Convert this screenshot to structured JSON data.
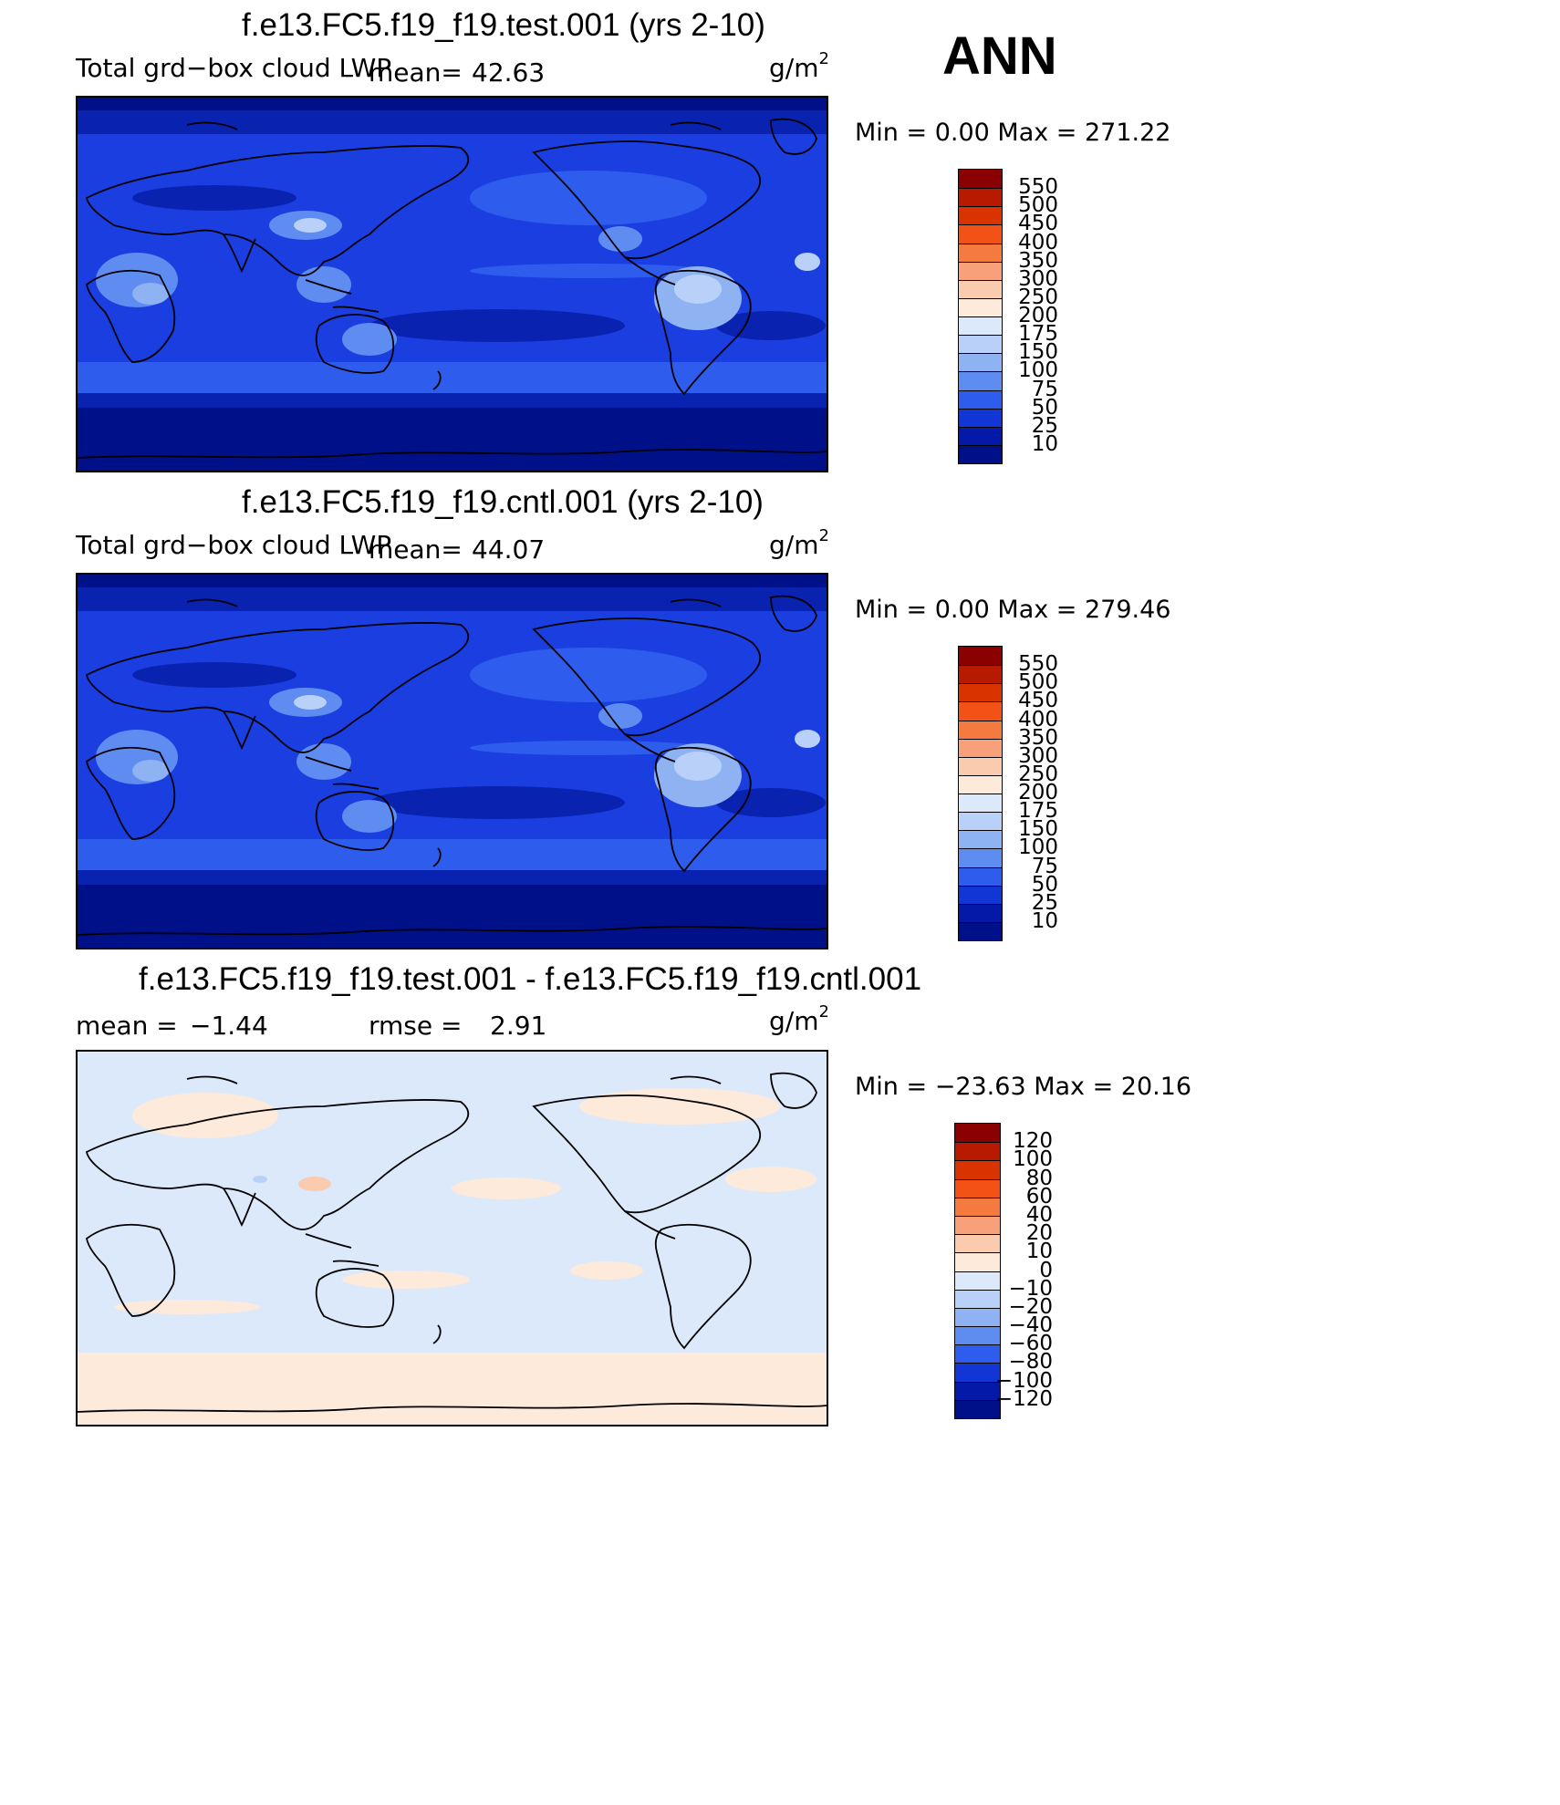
{
  "season": "ANN",
  "panels": [
    {
      "title": "f.e13.FC5.f19_f19.test.001 (yrs 2-10)",
      "variable": "Total grd−box cloud LWP",
      "stat_label": "mean=",
      "stat_value": "42.63",
      "units_base": "g/m",
      "units_exp": "2",
      "minmax": "Min  =     0.00  Max  =  271.22",
      "colorbar_labels": [
        "550",
        "500",
        "450",
        "400",
        "350",
        "300",
        "250",
        "200",
        "175",
        "150",
        "100",
        "75",
        "50",
        "25",
        "10"
      ],
      "colorbar_colors": [
        "#8b0000",
        "#b81a00",
        "#d93300",
        "#f25216",
        "#f57a3f",
        "#f7a07a",
        "#fbcbb0",
        "#fdeadb",
        "#dce9fb",
        "#b9d1f8",
        "#8fb2f3",
        "#5f8cf0",
        "#2e5ded",
        "#1236d6",
        "#0519a8",
        "#001088"
      ]
    },
    {
      "title": "f.e13.FC5.f19_f19.cntl.001 (yrs 2-10)",
      "variable": "Total grd−box cloud LWP",
      "stat_label": "mean=",
      "stat_value": "44.07",
      "units_base": "g/m",
      "units_exp": "2",
      "minmax": "Min  =     0.00  Max  =  279.46",
      "colorbar_labels": [
        "550",
        "500",
        "450",
        "400",
        "350",
        "300",
        "250",
        "200",
        "175",
        "150",
        "100",
        "75",
        "50",
        "25",
        "10"
      ],
      "colorbar_colors": [
        "#8b0000",
        "#b81a00",
        "#d93300",
        "#f25216",
        "#f57a3f",
        "#f7a07a",
        "#fbcbb0",
        "#fdeadb",
        "#dce9fb",
        "#b9d1f8",
        "#8fb2f3",
        "#5f8cf0",
        "#2e5ded",
        "#1236d6",
        "#0519a8",
        "#001088"
      ]
    },
    {
      "title": "f.e13.FC5.f19_f19.test.001 - f.e13.FC5.f19_f19.cntl.001",
      "mean_label": "mean  =",
      "mean_value": "−1.44",
      "rmse_label": "rmse  =",
      "rmse_value": "2.91",
      "units_base": "g/m",
      "units_exp": "2",
      "minmax": "Min  = −23.63  Max  =   20.16",
      "colorbar_labels": [
        "120",
        "100",
        "80",
        "60",
        "40",
        "20",
        "10",
        "0",
        "−10",
        "−20",
        "−40",
        "−60",
        "−80",
        "−100",
        "−120"
      ],
      "colorbar_colors": [
        "#8b0000",
        "#b81a00",
        "#d93300",
        "#f25216",
        "#f57a3f",
        "#f7a07a",
        "#fbcbb0",
        "#fdeadb",
        "#dce9fb",
        "#b9d1f8",
        "#8fb2f3",
        "#5f8cf0",
        "#2e5ded",
        "#1236d6",
        "#0519a8",
        "#001088"
      ]
    }
  ],
  "map_colors": {
    "ocean_base": "#1a3ee0",
    "ocean_mid": "#2e5ded",
    "ocean_dark": "#0a22b0",
    "polar_dark": "#001088",
    "land_high": "#8fb2f3",
    "land_peak": "#dce9fb",
    "diff_base": "#dce9fb",
    "diff_pos": "#fdeadb",
    "diff_warm": "#fbcbb0",
    "diff_neg": "#b9d1f8"
  }
}
